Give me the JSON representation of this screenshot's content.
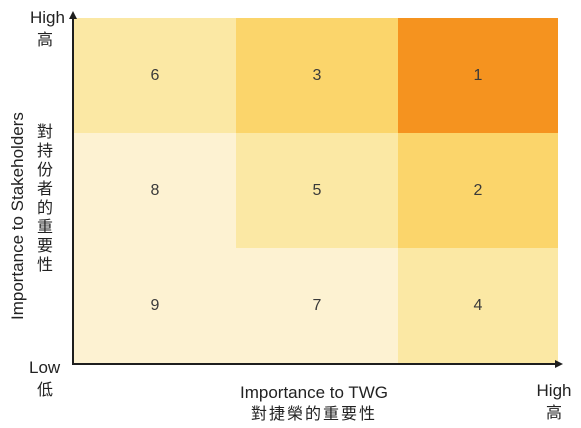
{
  "y_axis": {
    "title": "Importance to Stakeholders",
    "title_cn": "對持份者的重要性",
    "high_label": "High",
    "high_label_cn": "高",
    "low_label": "Low",
    "low_label_cn": "低"
  },
  "x_axis": {
    "title": "Importance to TWG",
    "title_cn": "對捷榮的重要性",
    "high_label": "High",
    "high_label_cn": "高"
  },
  "cells": [
    {
      "row": 0,
      "col": 0,
      "value": "6",
      "color": "#fbe8a4"
    },
    {
      "row": 0,
      "col": 1,
      "value": "3",
      "color": "#fbd56b"
    },
    {
      "row": 0,
      "col": 2,
      "value": "1",
      "color": "#f5931f"
    },
    {
      "row": 1,
      "col": 0,
      "value": "8",
      "color": "#fdf2d2"
    },
    {
      "row": 1,
      "col": 1,
      "value": "5",
      "color": "#fbe8a4"
    },
    {
      "row": 1,
      "col": 2,
      "value": "2",
      "color": "#fbd56b"
    },
    {
      "row": 2,
      "col": 0,
      "value": "9",
      "color": "#fdf2d2"
    },
    {
      "row": 2,
      "col": 1,
      "value": "7",
      "color": "#fdf2d2"
    },
    {
      "row": 2,
      "col": 2,
      "value": "4",
      "color": "#fbe8a4"
    }
  ]
}
